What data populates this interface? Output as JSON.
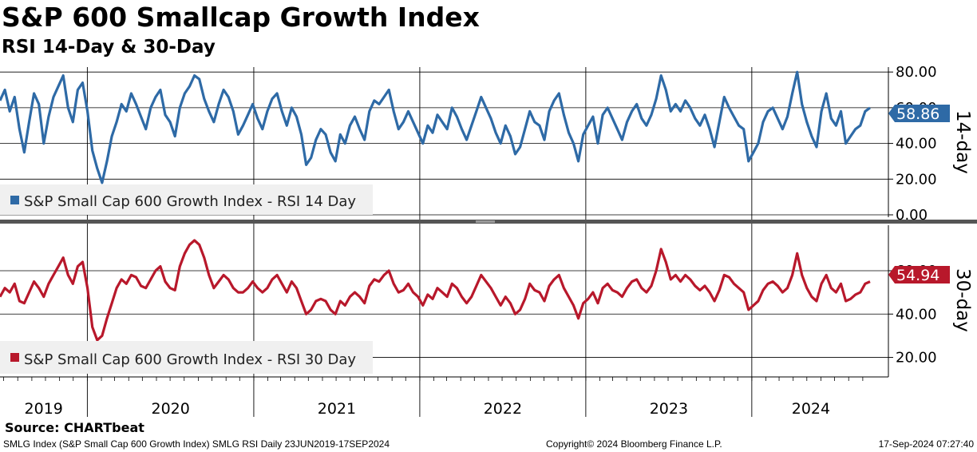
{
  "header": {
    "title": "S&P 600 Smallcap Growth Index",
    "subtitle": "RSI 14-Day & 30-Day"
  },
  "footer": {
    "source": "Source: CHARTbeat",
    "ticker_info": "SMLG Index (S&P Small Cap 600 Growth Index) SMLG RSI  Daily 23JUN2019-17SEP2024",
    "copyright": "Copyright© 2024 Bloomberg Finance L.P.",
    "timestamp": "17-Sep-2024 07:27:40"
  },
  "chart_data": [
    {
      "type": "line",
      "panel": "top",
      "side_label": "14-day",
      "legend": "S&P Small Cap 600 Growth Index - RSI 14 Day",
      "legend_placement": "bottom-left",
      "color": "#2e6aa6",
      "last_value_label": "58.86",
      "ylim": [
        0,
        85
      ],
      "yticks": [
        "0.00",
        "20.00",
        "40.00",
        "60.00",
        "80.00"
      ],
      "x_start": "2019-06-23",
      "x_end": "2024-09-17",
      "years": [
        "2019",
        "2020",
        "2021",
        "2022",
        "2023",
        "2024"
      ],
      "grid": true,
      "series": [
        {
          "values": [
            64,
            70,
            58,
            66,
            48,
            35,
            52,
            68,
            62,
            40,
            55,
            66,
            72,
            78,
            60,
            52,
            70,
            74,
            58,
            36,
            26,
            18,
            30,
            44,
            52,
            62,
            58,
            68,
            62,
            55,
            48,
            60,
            66,
            70,
            56,
            52,
            44,
            60,
            68,
            72,
            78,
            76,
            65,
            58,
            52,
            62,
            70,
            66,
            58,
            45,
            50,
            56,
            62,
            54,
            48,
            58,
            65,
            68,
            58,
            50,
            60,
            55,
            45,
            28,
            32,
            42,
            48,
            45,
            35,
            30,
            45,
            40,
            50,
            55,
            48,
            42,
            58,
            64,
            62,
            66,
            70,
            58,
            48,
            52,
            58,
            52,
            46,
            40,
            50,
            46,
            56,
            52,
            48,
            60,
            55,
            48,
            42,
            50,
            58,
            66,
            60,
            54,
            46,
            40,
            50,
            44,
            34,
            38,
            48,
            58,
            52,
            50,
            42,
            58,
            64,
            68,
            56,
            46,
            40,
            30,
            45,
            50,
            55,
            40,
            56,
            60,
            54,
            48,
            42,
            52,
            58,
            62,
            54,
            50,
            56,
            65,
            78,
            70,
            58,
            62,
            58,
            64,
            60,
            54,
            50,
            56,
            48,
            38,
            52,
            66,
            60,
            55,
            50,
            48,
            30,
            35,
            40,
            52,
            58,
            60,
            54,
            48,
            55,
            68,
            80,
            62,
            52,
            44,
            38,
            58,
            68,
            54,
            50,
            58,
            40,
            44,
            48,
            50,
            58,
            60
          ]
        }
      ]
    },
    {
      "type": "line",
      "panel": "bottom",
      "side_label": "30-day",
      "legend": "S&P Small Cap 600 Growth Index - RSI 30 Day",
      "legend_placement": "bottom-left",
      "color": "#b8182b",
      "last_value_label": "54.94",
      "ylim": [
        11,
        81
      ],
      "yticks": [
        "20.00",
        "40.00",
        "60.00"
      ],
      "x_start": "2019-06-23",
      "x_end": "2024-09-17",
      "years": [
        "2019",
        "2020",
        "2021",
        "2022",
        "2023",
        "2024"
      ],
      "grid": true,
      "series": [
        {
          "values": [
            48,
            52,
            50,
            54,
            46,
            45,
            50,
            55,
            52,
            48,
            54,
            58,
            62,
            66,
            58,
            54,
            62,
            64,
            52,
            34,
            28,
            30,
            38,
            45,
            52,
            56,
            54,
            58,
            57,
            53,
            52,
            56,
            60,
            62,
            55,
            52,
            51,
            62,
            68,
            72,
            74,
            72,
            66,
            58,
            52,
            55,
            58,
            56,
            52,
            50,
            50,
            52,
            55,
            52,
            50,
            52,
            56,
            58,
            54,
            50,
            55,
            52,
            46,
            40,
            42,
            46,
            47,
            46,
            42,
            40,
            46,
            44,
            48,
            50,
            48,
            45,
            53,
            56,
            55,
            58,
            60,
            54,
            50,
            51,
            54,
            50,
            48,
            44,
            49,
            47,
            52,
            50,
            48,
            54,
            52,
            48,
            45,
            48,
            53,
            58,
            55,
            52,
            48,
            44,
            48,
            45,
            40,
            42,
            47,
            54,
            51,
            50,
            46,
            53,
            56,
            58,
            52,
            48,
            44,
            38,
            45,
            47,
            50,
            45,
            52,
            54,
            51,
            50,
            48,
            52,
            55,
            56,
            52,
            50,
            53,
            60,
            70,
            64,
            56,
            58,
            55,
            58,
            56,
            53,
            51,
            53,
            50,
            46,
            51,
            58,
            57,
            54,
            52,
            50,
            42,
            44,
            46,
            51,
            54,
            55,
            53,
            50,
            52,
            58,
            68,
            58,
            52,
            48,
            46,
            54,
            58,
            52,
            50,
            54,
            46,
            47,
            49,
            50,
            54,
            55
          ]
        }
      ]
    }
  ]
}
